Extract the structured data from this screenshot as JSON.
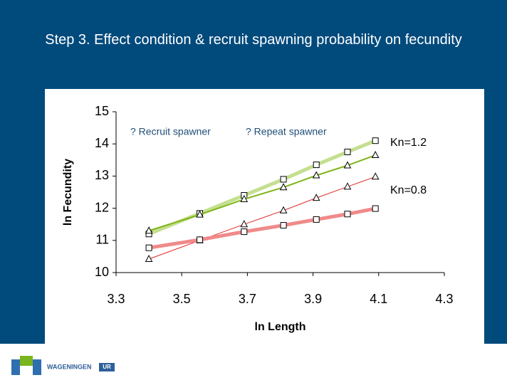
{
  "title": "Step 3. Effect condition & recruit spawning probability on fecundity",
  "logo": {
    "name": "WAGENINGEN",
    "suffix": "UR"
  },
  "chart_data": {
    "type": "line",
    "x": [
      3.4,
      3.555,
      3.69,
      3.81,
      3.91,
      4.005,
      4.09
    ],
    "series": [
      {
        "color": "#c4df8e",
        "width": 5,
        "marker": "square",
        "values": [
          11.2,
          11.84,
          12.4,
          12.9,
          13.35,
          13.75,
          14.1
        ]
      },
      {
        "color": "#7fb418",
        "width": 2,
        "marker": "triangle",
        "values": [
          11.3,
          11.8,
          12.28,
          12.65,
          13.02,
          13.33,
          13.65
        ]
      },
      {
        "color": "#e02a2a",
        "width": 1,
        "marker": "triangle",
        "values": [
          10.42,
          11.0,
          11.5,
          11.93,
          12.32,
          12.67,
          12.98
        ]
      },
      {
        "color": "#f08a8a",
        "width": 5,
        "marker": "square",
        "values": [
          10.77,
          11.02,
          11.27,
          11.47,
          11.65,
          11.82,
          11.99
        ]
      }
    ],
    "legend": [
      "? Recruit spawner",
      "? Repeat spawner"
    ],
    "annotations": [
      "Kn=1.2",
      "Kn=0.8"
    ],
    "xlabel": "ln Length",
    "ylabel": "ln Fecundity",
    "xlim": [
      3.3,
      4.3
    ],
    "xticks": [
      3.3,
      3.5,
      3.7,
      3.9,
      4.1,
      4.3
    ],
    "ylim": [
      10,
      15
    ],
    "yticks": [
      10,
      11,
      12,
      13,
      14,
      15
    ],
    "grid": false
  }
}
